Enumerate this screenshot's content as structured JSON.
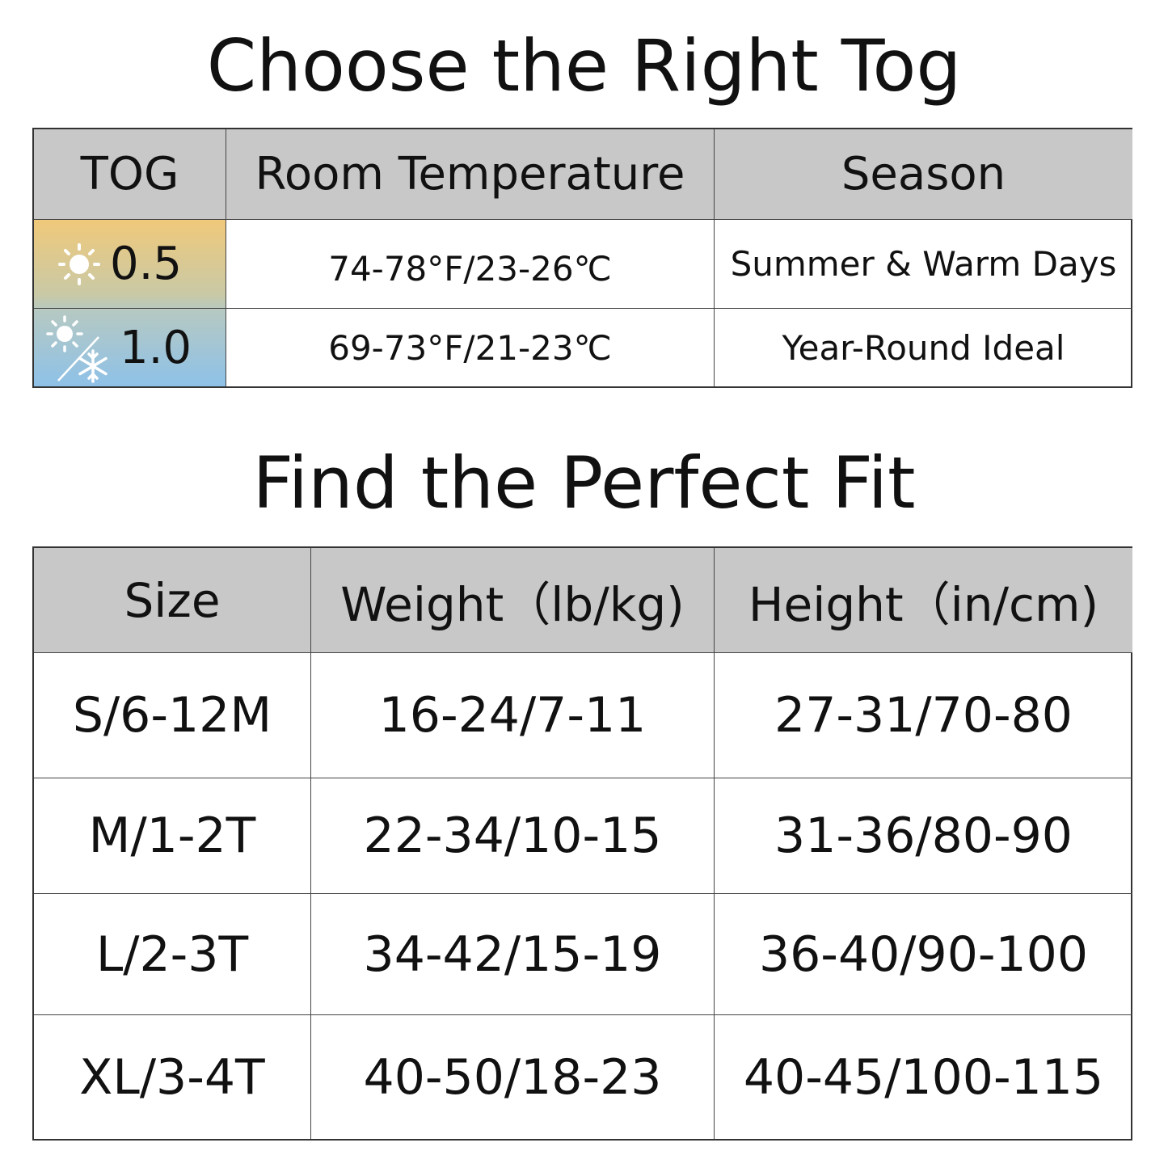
{
  "tog_section": {
    "title": "Choose the Right Tog",
    "headers": [
      "TOG",
      "Room Temperature",
      "Season"
    ],
    "rows": [
      {
        "tog": "0.5",
        "icon": "sun-icon",
        "temperature": "74-78°F/23-26℃",
        "season": "Summer & Warm Days"
      },
      {
        "tog": "1.0",
        "icon": "sun-snowflake-icon",
        "temperature": "69-73°F/21-23℃",
        "season": "Year-Round Ideal"
      }
    ],
    "colors": {
      "header_bg": "#c8c8c8",
      "warm": "#f0c97a",
      "cool": "#8ec1e8"
    }
  },
  "fit_section": {
    "title": "Find the Perfect Fit",
    "headers": [
      "Size",
      "Weight（lb/kg)",
      "Height（in/cm)"
    ],
    "rows": [
      {
        "size": "S/6-12M",
        "weight": "16-24/7-11",
        "height": "27-31/70-80"
      },
      {
        "size": "M/1-2T",
        "weight": "22-34/10-15",
        "height": "31-36/80-90"
      },
      {
        "size": "L/2-3T",
        "weight": "34-42/15-19",
        "height": "36-40/90-100"
      },
      {
        "size": "XL/3-4T",
        "weight": "40-50/18-23",
        "height": "40-45/100-115"
      }
    ]
  }
}
